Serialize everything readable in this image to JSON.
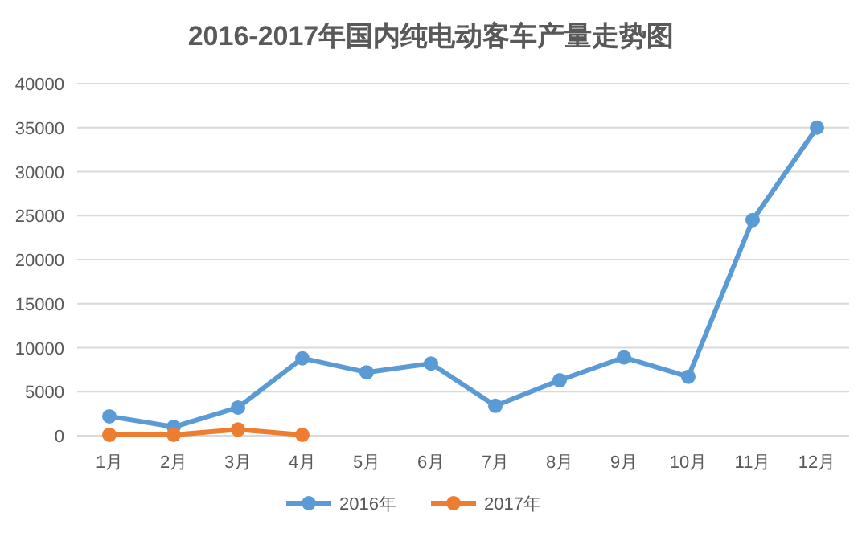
{
  "chart_data": {
    "type": "line",
    "title": "2016-2017年国内纯电动客车产量走势图",
    "categories": [
      "1月",
      "2月",
      "3月",
      "4月",
      "5月",
      "6月",
      "7月",
      "8月",
      "9月",
      "10月",
      "11月",
      "12月"
    ],
    "series": [
      {
        "name": "2016年",
        "color": "#5b9bd5",
        "values": [
          2200,
          1000,
          3200,
          8800,
          7200,
          8200,
          3400,
          6300,
          8900,
          6700,
          24500,
          35000
        ]
      },
      {
        "name": "2017年",
        "color": "#ed7d31",
        "values": [
          100,
          100,
          700,
          100,
          null,
          null,
          null,
          null,
          null,
          null,
          null,
          null
        ]
      }
    ],
    "ylim": [
      0,
      40000
    ],
    "yticks": [
      0,
      5000,
      10000,
      15000,
      20000,
      25000,
      30000,
      35000,
      40000
    ],
    "grid": "y",
    "legend": "bottom",
    "marker": "circle"
  }
}
